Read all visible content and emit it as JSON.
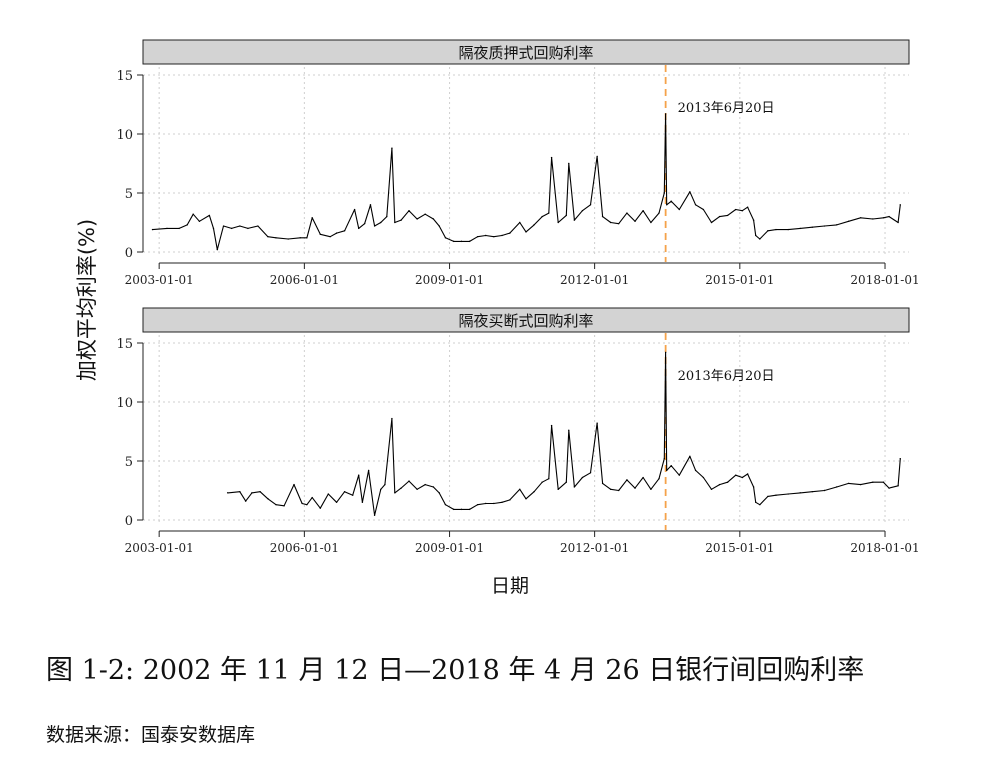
{
  "figure": {
    "ylabel": "加权平均利率(%)",
    "xlabel": "日期",
    "caption": "图 1-2: 2002 年 11 月 12 日—2018 年 4 月 26 日银行间回购利率",
    "source": "数据来源：国泰安数据库",
    "line_color": "#000000",
    "event_line_color": "#f5a24a",
    "panel_header_color": "#d3d3d3"
  },
  "chart_data": [
    {
      "type": "line",
      "title": "隔夜质押式回购利率",
      "x_ticks": [
        "2003-01-01",
        "2006-01-01",
        "2009-01-01",
        "2012-01-01",
        "2015-01-01",
        "2018-01-01"
      ],
      "y_ticks": [
        0,
        5,
        10,
        15
      ],
      "ylim": [
        0,
        15
      ],
      "xlim": [
        "2002-09-01",
        "2018-07-01"
      ],
      "grid": true,
      "event_line": {
        "x": "2013-06-20",
        "label": "2013年6月20日"
      },
      "series": [
        {
          "x": [
            "2002-11-12",
            "2003-03-01",
            "2003-06-01",
            "2003-08-01",
            "2003-09-15",
            "2003-11-01",
            "2004-01-15",
            "2004-02-15",
            "2004-03-15",
            "2004-05-01",
            "2004-07-01",
            "2004-09-01",
            "2004-11-01",
            "2005-01-15",
            "2005-04-01",
            "2005-06-01",
            "2005-09-01",
            "2005-12-01",
            "2006-01-20",
            "2006-03-01",
            "2006-05-01",
            "2006-07-15",
            "2006-09-01",
            "2006-11-01",
            "2007-01-15",
            "2007-02-15",
            "2007-04-01",
            "2007-05-15",
            "2007-06-15",
            "2007-08-01",
            "2007-09-15",
            "2007-10-24",
            "2007-11-15",
            "2008-01-01",
            "2008-03-01",
            "2008-05-01",
            "2008-07-01",
            "2008-09-01",
            "2008-10-15",
            "2008-12-01",
            "2009-02-01",
            "2009-04-01",
            "2009-06-01",
            "2009-08-01",
            "2009-10-01",
            "2009-12-01",
            "2010-02-01",
            "2010-04-01",
            "2010-06-15",
            "2010-08-01",
            "2010-10-01",
            "2010-12-01",
            "2011-01-20",
            "2011-02-10",
            "2011-04-01",
            "2011-06-01",
            "2011-06-20",
            "2011-08-01",
            "2011-10-01",
            "2011-12-01",
            "2012-01-20",
            "2012-03-01",
            "2012-05-01",
            "2012-07-01",
            "2012-09-01",
            "2012-11-01",
            "2013-01-01",
            "2013-03-01",
            "2013-05-01",
            "2013-06-10",
            "2013-06-20",
            "2013-06-28",
            "2013-08-01",
            "2013-10-01",
            "2013-12-20",
            "2014-02-01",
            "2014-04-01",
            "2014-06-01",
            "2014-08-01",
            "2014-10-01",
            "2014-12-01",
            "2015-01-20",
            "2015-03-01",
            "2015-04-15",
            "2015-05-01",
            "2015-06-01",
            "2015-08-01",
            "2015-10-01",
            "2016-01-01",
            "2016-04-01",
            "2016-07-01",
            "2016-10-01",
            "2017-01-01",
            "2017-04-01",
            "2017-07-01",
            "2017-10-01",
            "2017-12-20",
            "2018-02-01",
            "2018-04-10",
            "2018-04-26"
          ],
          "values": [
            1.9,
            2.0,
            2.0,
            2.3,
            3.2,
            2.6,
            3.1,
            2.0,
            0.2,
            2.2,
            2.0,
            2.2,
            2.0,
            2.2,
            1.3,
            1.2,
            1.1,
            1.2,
            1.2,
            2.9,
            1.5,
            1.3,
            1.6,
            1.8,
            3.6,
            2.0,
            2.4,
            4.0,
            2.2,
            2.5,
            3.0,
            8.8,
            2.5,
            2.7,
            3.5,
            2.8,
            3.2,
            2.8,
            2.2,
            1.2,
            0.9,
            0.9,
            0.9,
            1.3,
            1.4,
            1.3,
            1.4,
            1.6,
            2.5,
            1.7,
            2.3,
            3.0,
            3.3,
            8.0,
            2.5,
            3.1,
            7.5,
            2.7,
            3.5,
            4.0,
            8.1,
            3.0,
            2.5,
            2.4,
            3.3,
            2.6,
            3.5,
            2.5,
            3.3,
            5.0,
            11.7,
            4.0,
            4.3,
            3.6,
            5.1,
            4.0,
            3.6,
            2.5,
            3.0,
            3.1,
            3.6,
            3.5,
            3.8,
            2.7,
            1.4,
            1.1,
            1.8,
            1.9,
            1.9,
            2.0,
            2.1,
            2.2,
            2.3,
            2.6,
            2.9,
            2.8,
            2.9,
            3.0,
            2.5,
            4.0
          ]
        }
      ]
    },
    {
      "type": "line",
      "title": "隔夜买断式回购利率",
      "x_ticks": [
        "2003-01-01",
        "2006-01-01",
        "2009-01-01",
        "2012-01-01",
        "2015-01-01",
        "2018-01-01"
      ],
      "y_ticks": [
        0,
        5,
        10,
        15
      ],
      "ylim": [
        0,
        15
      ],
      "xlim": [
        "2002-09-01",
        "2018-07-01"
      ],
      "grid": true,
      "event_line": {
        "x": "2013-06-20",
        "label": "2013年6月20日"
      },
      "series": [
        {
          "x": [
            "2004-06-01",
            "2004-09-01",
            "2004-10-15",
            "2004-12-01",
            "2005-02-01",
            "2005-04-01",
            "2005-06-01",
            "2005-08-01",
            "2005-10-15",
            "2005-12-15",
            "2006-01-20",
            "2006-03-01",
            "2006-05-01",
            "2006-07-01",
            "2006-09-01",
            "2006-11-01",
            "2007-01-01",
            "2007-02-15",
            "2007-03-15",
            "2007-05-01",
            "2007-06-15",
            "2007-08-01",
            "2007-09-01",
            "2007-10-24",
            "2007-11-15",
            "2008-01-01",
            "2008-03-01",
            "2008-05-01",
            "2008-07-01",
            "2008-09-01",
            "2008-10-15",
            "2008-12-01",
            "2009-02-01",
            "2009-04-01",
            "2009-06-01",
            "2009-08-01",
            "2009-10-01",
            "2009-12-01",
            "2010-02-01",
            "2010-04-01",
            "2010-06-15",
            "2010-08-01",
            "2010-10-01",
            "2010-12-01",
            "2011-01-20",
            "2011-02-10",
            "2011-04-01",
            "2011-06-01",
            "2011-06-20",
            "2011-08-01",
            "2011-10-01",
            "2011-12-01",
            "2012-01-20",
            "2012-03-01",
            "2012-05-01",
            "2012-07-01",
            "2012-09-01",
            "2012-11-01",
            "2013-01-01",
            "2013-03-01",
            "2013-05-01",
            "2013-06-10",
            "2013-06-20",
            "2013-06-28",
            "2013-08-01",
            "2013-10-01",
            "2013-12-20",
            "2014-02-01",
            "2014-04-01",
            "2014-06-01",
            "2014-08-01",
            "2014-10-01",
            "2014-12-01",
            "2015-01-20",
            "2015-03-01",
            "2015-04-15",
            "2015-05-01",
            "2015-06-01",
            "2015-08-01",
            "2015-10-01",
            "2016-01-01",
            "2016-04-01",
            "2016-07-01",
            "2016-10-01",
            "2017-01-01",
            "2017-04-01",
            "2017-07-01",
            "2017-10-01",
            "2017-12-20",
            "2018-02-01",
            "2018-04-10",
            "2018-04-26"
          ],
          "values": [
            2.3,
            2.4,
            1.6,
            2.3,
            2.4,
            1.8,
            1.3,
            1.2,
            3.0,
            1.4,
            1.3,
            1.9,
            1.0,
            2.2,
            1.5,
            2.4,
            2.1,
            3.8,
            1.5,
            4.2,
            0.4,
            2.6,
            3.0,
            8.6,
            2.3,
            2.7,
            3.3,
            2.6,
            3.0,
            2.8,
            2.3,
            1.3,
            0.9,
            0.9,
            0.9,
            1.3,
            1.4,
            1.4,
            1.5,
            1.7,
            2.6,
            1.8,
            2.4,
            3.2,
            3.5,
            8.0,
            2.6,
            3.2,
            7.6,
            2.8,
            3.6,
            4.0,
            8.2,
            3.1,
            2.6,
            2.5,
            3.4,
            2.7,
            3.6,
            2.6,
            3.5,
            5.2,
            14.2,
            4.2,
            4.6,
            3.8,
            5.4,
            4.2,
            3.6,
            2.6,
            3.0,
            3.2,
            3.8,
            3.6,
            3.9,
            2.8,
            1.5,
            1.3,
            2.0,
            2.1,
            2.2,
            2.3,
            2.4,
            2.5,
            2.8,
            3.1,
            3.0,
            3.2,
            3.2,
            2.7,
            2.9,
            5.2
          ]
        }
      ]
    }
  ]
}
